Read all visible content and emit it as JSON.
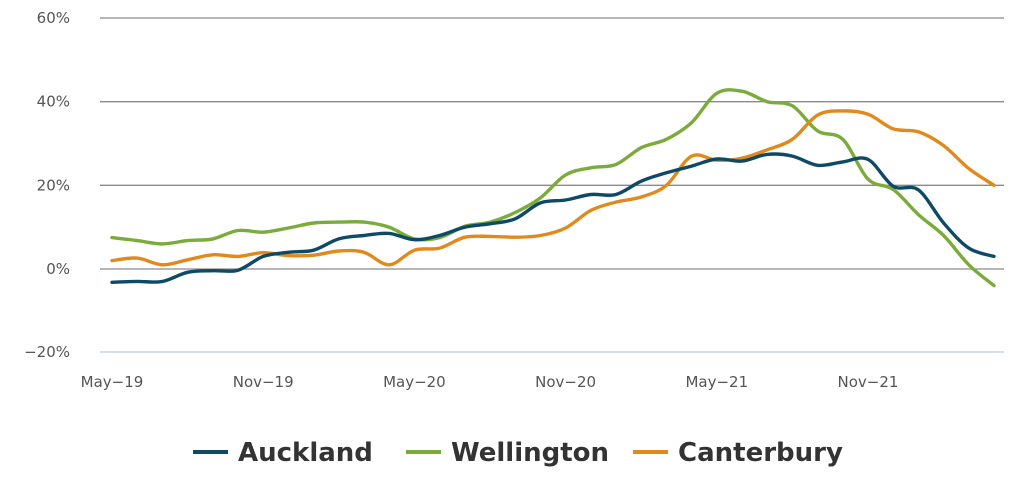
{
  "chart_data": {
    "type": "line",
    "ylim": [
      -20,
      60
    ],
    "y_ticks": [
      60,
      40,
      20,
      0,
      -20
    ],
    "y_tick_labels": [
      "60%",
      "40%",
      "20%",
      "0%",
      "−20%"
    ],
    "x_tick_labels": [
      "May−19",
      "Nov−19",
      "May−20",
      "Nov−20",
      "May−21",
      "Nov−21"
    ],
    "x_tick_positions": [
      0,
      6,
      12,
      18,
      24,
      30
    ],
    "x": [
      0,
      1,
      2,
      3,
      4,
      5,
      6,
      7,
      8,
      9,
      10,
      11,
      12,
      13,
      14,
      15,
      16,
      17,
      18,
      19,
      20,
      21,
      22,
      23,
      24,
      25,
      26,
      27,
      28,
      29,
      30,
      31,
      32,
      33,
      34,
      35
    ],
    "grid": true,
    "legend_position": "bottom",
    "series": [
      {
        "name": "Auckland",
        "color": "#0e4a66",
        "values": [
          -3.2,
          -3.0,
          -3.0,
          -0.8,
          -0.4,
          -0.3,
          3.0,
          4.0,
          4.5,
          7.2,
          8.0,
          8.5,
          7.0,
          8.0,
          10.0,
          10.8,
          12.0,
          15.8,
          16.5,
          17.8,
          17.8,
          21.0,
          23.0,
          24.6,
          26.3,
          25.8,
          27.4,
          27.0,
          24.8,
          25.6,
          26.2,
          19.8,
          18.9,
          11.0,
          5.0,
          3.0
        ]
      },
      {
        "name": "Wellington",
        "color": "#7aab3b",
        "values": [
          7.5,
          6.8,
          6.0,
          6.8,
          7.2,
          9.2,
          8.8,
          9.8,
          11.0,
          11.2,
          11.2,
          10.0,
          7.2,
          7.5,
          10.2,
          11.2,
          13.5,
          17.0,
          22.5,
          24.2,
          25.0,
          29.0,
          31.0,
          35.0,
          42.0,
          42.5,
          40.0,
          39.0,
          33.0,
          31.0,
          21.5,
          19.0,
          13.0,
          8.0,
          1.0,
          -4.0
        ]
      },
      {
        "name": "Canterbury",
        "color": "#e08a1e",
        "values": [
          2.0,
          2.6,
          1.0,
          2.2,
          3.4,
          3.0,
          3.9,
          3.2,
          3.3,
          4.3,
          4.0,
          1.0,
          4.5,
          5.0,
          7.6,
          7.8,
          7.6,
          8.0,
          9.8,
          14.0,
          16.0,
          17.2,
          20.0,
          27.0,
          26.0,
          26.5,
          28.5,
          31.0,
          36.8,
          37.8,
          37.0,
          33.5,
          32.8,
          29.5,
          24.0,
          20.0
        ]
      }
    ]
  }
}
